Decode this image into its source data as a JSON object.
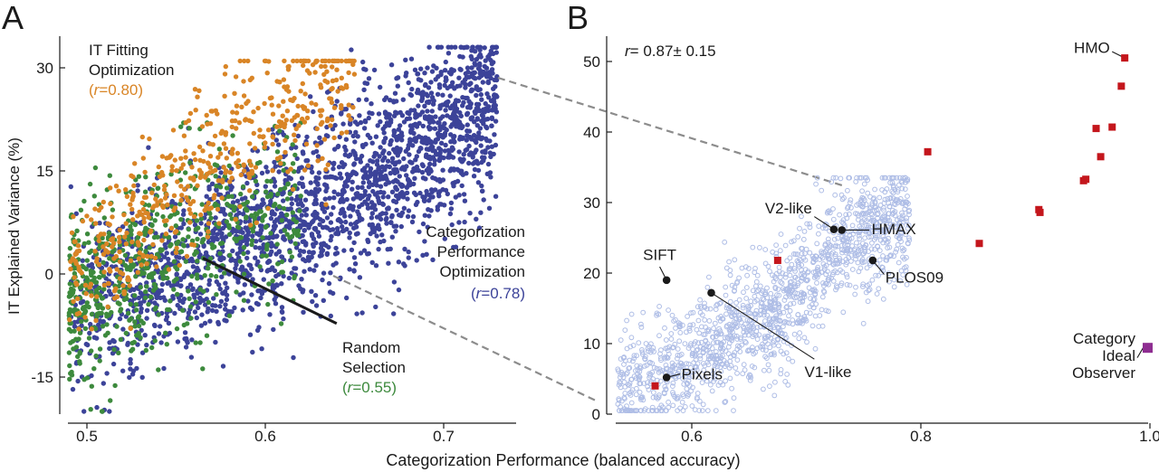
{
  "colors": {
    "orange": "#d98526",
    "green": "#3d8a3d",
    "navy": "#3c4399",
    "light_blue": "#aebde6",
    "red": "#c4161c",
    "purple": "#8e2d91",
    "black": "#1a1a1a",
    "dashed": "#8c8c8c"
  },
  "chart_data": [
    {
      "panel": "A",
      "type": "scatter",
      "xlabel": "Categorization Performance (balanced accuracy)",
      "ylabel": "IT Explained Variance (%)",
      "xlim": [
        0.49,
        0.77
      ],
      "ylim": [
        -20,
        34
      ],
      "xticks": [
        "0.5",
        "0.6",
        "0.7"
      ],
      "yticks": [
        "-15",
        "0",
        "15",
        "30"
      ],
      "grid": false,
      "series": [
        {
          "key": "categorization",
          "label_lines": [
            "Categorization",
            "Performance",
            "Optimization"
          ],
          "r_text": "=0.78",
          "color": "#3c4399",
          "approx_points": 3000,
          "x_range": [
            0.49,
            0.73
          ],
          "y_range": [
            -20,
            33
          ],
          "trend": [
            [
              0.5,
              -5
            ],
            [
              0.6,
              5
            ],
            [
              0.7,
              20
            ],
            [
              0.73,
              25
            ]
          ]
        },
        {
          "key": "it_fitting",
          "label_lines": [
            "IT Fitting",
            "Optimization"
          ],
          "r_text": "=0.80",
          "color": "#d98526",
          "approx_points": 700,
          "x_range": [
            0.49,
            0.65
          ],
          "y_range": [
            -8,
            31
          ],
          "trend": [
            [
              0.5,
              0
            ],
            [
              0.55,
              12
            ],
            [
              0.6,
              22
            ],
            [
              0.64,
              28
            ]
          ]
        },
        {
          "key": "random",
          "label_lines": [
            "Random",
            "Selection"
          ],
          "r_text": "=0.55",
          "color": "#3d8a3d",
          "approx_points": 900,
          "x_range": [
            0.49,
            0.62
          ],
          "y_range": [
            -20,
            22
          ],
          "trend": [
            [
              0.5,
              -3
            ],
            [
              0.55,
              4
            ],
            [
              0.6,
              10
            ]
          ]
        }
      ],
      "annotation_line": {
        "from": [
          0.565,
          2.3
        ],
        "to": [
          0.64,
          -7.2
        ]
      }
    },
    {
      "panel": "B",
      "type": "scatter",
      "correlation_text": "= 0.87± 0.15",
      "xlim": [
        0.53,
        1.0
      ],
      "ylim": [
        0,
        52
      ],
      "xticks": [
        "0.6",
        "0.8",
        "1.0"
      ],
      "yticks": [
        "0",
        "10",
        "20",
        "30",
        "40",
        "50"
      ],
      "grid": false,
      "background_cloud": {
        "color": "#aebde6",
        "approx_points": 1800,
        "x_range": [
          0.53,
          0.79
        ],
        "y_range": [
          0,
          34
        ]
      },
      "red_points": [
        {
          "x": 0.978,
          "y": 50.5
        },
        {
          "x": 0.975,
          "y": 46.5
        },
        {
          "x": 0.953,
          "y": 40.5
        },
        {
          "x": 0.967,
          "y": 40.7
        },
        {
          "x": 0.957,
          "y": 36.5
        },
        {
          "x": 0.942,
          "y": 33.1
        },
        {
          "x": 0.944,
          "y": 33.3
        },
        {
          "x": 0.903,
          "y": 29.0
        },
        {
          "x": 0.904,
          "y": 28.6
        },
        {
          "x": 0.806,
          "y": 37.2
        },
        {
          "x": 0.851,
          "y": 24.2
        },
        {
          "x": 0.675,
          "y": 21.8
        },
        {
          "x": 0.568,
          "y": 4.0
        }
      ],
      "purple_point": {
        "x": 0.998,
        "y": 9.4
      },
      "black_points": [
        {
          "key": "sift",
          "x": 0.578,
          "y": 19.0
        },
        {
          "key": "v2like",
          "x": 0.724,
          "y": 26.2
        },
        {
          "key": "hmax",
          "x": 0.731,
          "y": 26.1
        },
        {
          "key": "plos09",
          "x": 0.758,
          "y": 21.8
        },
        {
          "key": "v1like",
          "x": 0.617,
          "y": 17.2
        },
        {
          "key": "pixels",
          "x": 0.578,
          "y": 5.2
        }
      ],
      "labels": [
        {
          "key": "hmo",
          "text": "HMO",
          "x": 0.965,
          "y": 52.0,
          "anchor": "end"
        },
        {
          "key": "v2like",
          "text": "V2-like",
          "x": 0.705,
          "y": 29.2,
          "anchor": "end"
        },
        {
          "key": "hmax",
          "text": "HMAX",
          "x": 0.757,
          "y": 26.3,
          "anchor": "start"
        },
        {
          "key": "sift",
          "text": "SIFT",
          "x": 0.572,
          "y": 22.6,
          "anchor": "middle"
        },
        {
          "key": "plos09",
          "text": "PLOS09",
          "x": 0.769,
          "y": 19.4,
          "anchor": "start"
        },
        {
          "key": "v1like",
          "text": "V1-like",
          "x": 0.719,
          "y": 6.0,
          "anchor": "middle"
        },
        {
          "key": "pixels",
          "text": "Pixels",
          "x": 0.591,
          "y": 5.7,
          "anchor": "start"
        }
      ],
      "observer_label_lines": [
        "Category",
        "Ideal",
        "Observer"
      ]
    }
  ],
  "figure": {
    "panel_labels": [
      "A",
      "B"
    ],
    "r_symbol": "r",
    "r_paren_open": "(",
    "r_paren_close": ")"
  }
}
